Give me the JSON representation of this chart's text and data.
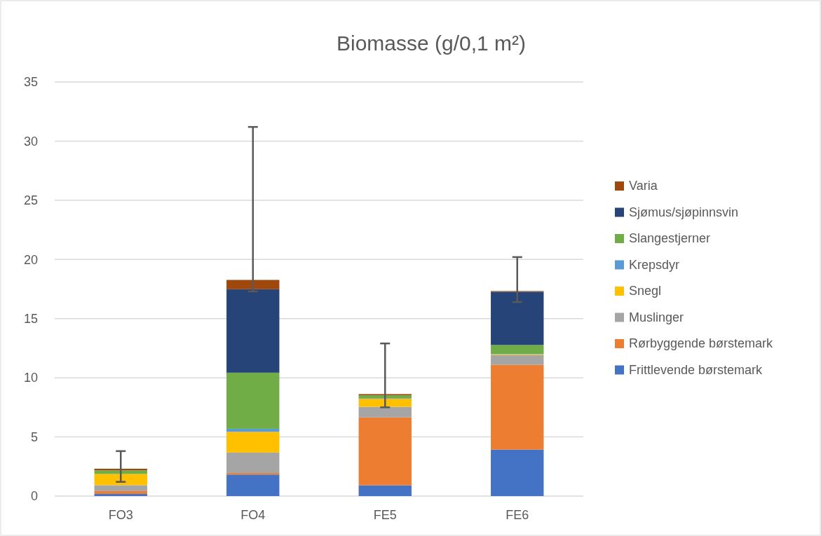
{
  "chart_data": {
    "type": "bar",
    "title": "Biomasse (g/0,1 m²)",
    "categories": [
      "FO3",
      "FO4",
      "FE5",
      "FE6"
    ],
    "stacked": true,
    "ylim": [
      0,
      35
    ],
    "yticks": [
      0,
      5,
      10,
      15,
      20,
      25,
      30,
      35
    ],
    "grid": "y",
    "legend": "right",
    "series": [
      {
        "name": "Frittlevende børstemark",
        "color": "#4472c4",
        "values": [
          0.18,
          1.82,
          0.91,
          3.93
        ]
      },
      {
        "name": "Rørbyggende børstemark",
        "color": "#ed7d31",
        "values": [
          0.24,
          0.13,
          5.74,
          7.16
        ]
      },
      {
        "name": "Muslinger",
        "color": "#a5a5a5",
        "values": [
          0.5,
          1.73,
          0.89,
          0.83
        ]
      },
      {
        "name": "Snegl",
        "color": "#ffc000",
        "values": [
          0.95,
          1.75,
          0.69,
          0.06
        ]
      },
      {
        "name": "Krepsdyr",
        "color": "#5b9bd5",
        "values": [
          null,
          0.26,
          0.05,
          0.03
        ]
      },
      {
        "name": "Slangestjerner",
        "color": "#70ad47",
        "values": [
          0.3,
          4.74,
          0.24,
          0.76
        ]
      },
      {
        "name": "Sjømus/sjøpinnsvin",
        "color": "#264478",
        "values": [
          null,
          7.05,
          null,
          4.5
        ]
      },
      {
        "name": "Varia",
        "color": "#9e480e",
        "values": [
          0.14,
          0.79,
          0.1,
          0.06
        ],
        "errors": [
          [
            1.2,
            3.8
          ],
          [
            17.3,
            31.2
          ],
          [
            7.5,
            12.9
          ],
          [
            16.4,
            20.2
          ]
        ]
      }
    ]
  }
}
